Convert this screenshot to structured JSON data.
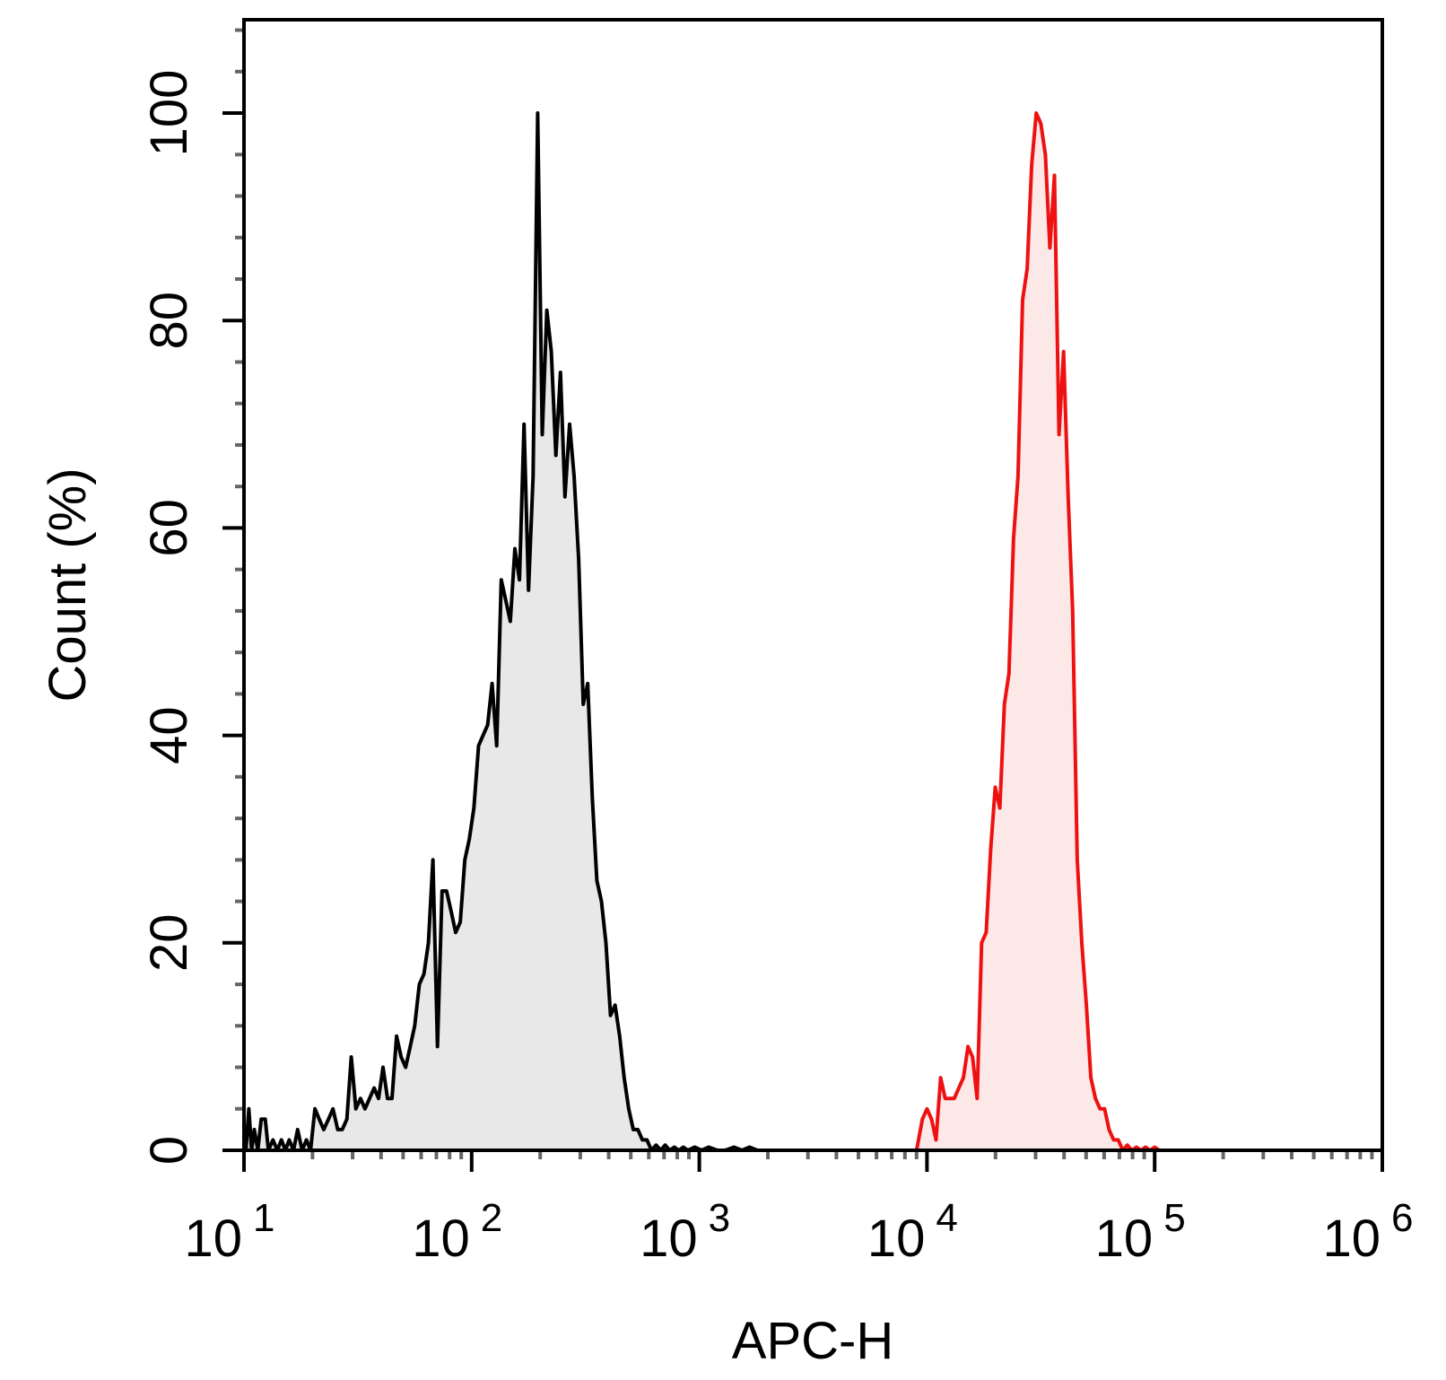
{
  "chart_data": {
    "type": "area",
    "xlabel": "APC-H",
    "ylabel": "Count  (%)",
    "x_scale": "log",
    "xlim": [
      10,
      1000000
    ],
    "ylim": [
      0,
      109
    ],
    "x_ticks": [
      {
        "base": "10",
        "exp": "1",
        "value": 10
      },
      {
        "base": "10",
        "exp": "2",
        "value": 100
      },
      {
        "base": "10",
        "exp": "3",
        "value": 1000
      },
      {
        "base": "10",
        "exp": "4",
        "value": 10000
      },
      {
        "base": "10",
        "exp": "5",
        "value": 100000
      },
      {
        "base": "10",
        "exp": "6",
        "value": 1000000
      }
    ],
    "y_ticks": [
      "0",
      "20",
      "40",
      "60",
      "80",
      "100"
    ],
    "grid": false,
    "legend": "none",
    "series": [
      {
        "color": "#000000",
        "fill": "#e8e8e8",
        "points": [
          [
            10.2,
            0
          ],
          [
            10.5,
            4
          ],
          [
            10.8,
            0
          ],
          [
            11.1,
            2
          ],
          [
            11.5,
            0
          ],
          [
            11.9,
            3
          ],
          [
            12.4,
            3
          ],
          [
            12.8,
            0
          ],
          [
            13.4,
            1
          ],
          [
            14.0,
            0
          ],
          [
            14.6,
            1
          ],
          [
            15.2,
            0
          ],
          [
            15.8,
            1
          ],
          [
            16.5,
            0
          ],
          [
            17.2,
            2
          ],
          [
            18.0,
            0
          ],
          [
            18.8,
            1
          ],
          [
            19.6,
            0
          ],
          [
            20.5,
            4
          ],
          [
            21.4,
            3
          ],
          [
            22.4,
            2
          ],
          [
            23.5,
            3
          ],
          [
            24.6,
            4
          ],
          [
            25.8,
            2
          ],
          [
            27.0,
            2
          ],
          [
            28.3,
            3
          ],
          [
            29.6,
            9
          ],
          [
            31.0,
            4
          ],
          [
            32.5,
            5
          ],
          [
            34.0,
            4
          ],
          [
            35.6,
            5
          ],
          [
            37.3,
            6
          ],
          [
            39.0,
            5
          ],
          [
            40.8,
            8
          ],
          [
            42.7,
            5
          ],
          [
            44.7,
            5
          ],
          [
            46.8,
            11
          ],
          [
            49.0,
            9
          ],
          [
            51.3,
            8
          ],
          [
            53.7,
            10
          ],
          [
            56.2,
            12
          ],
          [
            58.9,
            16
          ],
          [
            61.7,
            17
          ],
          [
            64.6,
            20
          ],
          [
            67.6,
            28
          ],
          [
            70.8,
            10
          ],
          [
            74.1,
            25
          ],
          [
            77.6,
            25
          ],
          [
            81.3,
            23
          ],
          [
            85.1,
            21
          ],
          [
            89.1,
            22
          ],
          [
            93.3,
            28
          ],
          [
            97.7,
            30
          ],
          [
            102.3,
            33
          ],
          [
            107.2,
            39
          ],
          [
            112.2,
            40
          ],
          [
            117.5,
            41
          ],
          [
            123.0,
            45
          ],
          [
            128.8,
            39
          ],
          [
            134.9,
            55
          ],
          [
            141.3,
            53
          ],
          [
            147.9,
            51
          ],
          [
            154.9,
            58
          ],
          [
            162.2,
            55
          ],
          [
            169.8,
            70
          ],
          [
            177.8,
            54
          ],
          [
            186.2,
            65
          ],
          [
            195.0,
            100
          ],
          [
            204.2,
            69
          ],
          [
            213.8,
            81
          ],
          [
            223.9,
            77
          ],
          [
            234.4,
            67
          ],
          [
            245.5,
            75
          ],
          [
            257.0,
            63
          ],
          [
            269.2,
            70
          ],
          [
            281.8,
            65
          ],
          [
            295.1,
            57
          ],
          [
            309.0,
            43
          ],
          [
            323.6,
            45
          ],
          [
            338.8,
            34
          ],
          [
            354.8,
            26
          ],
          [
            371.5,
            24
          ],
          [
            389.0,
            20
          ],
          [
            407.4,
            13
          ],
          [
            426.6,
            14
          ],
          [
            446.7,
            11
          ],
          [
            467.7,
            7
          ],
          [
            489.8,
            4
          ],
          [
            512.9,
            2
          ],
          [
            537.0,
            2
          ],
          [
            562.3,
            1
          ],
          [
            588.8,
            1
          ],
          [
            616.6,
            0
          ],
          [
            645.7,
            0.5
          ],
          [
            676.1,
            0
          ],
          [
            707.9,
            0.5
          ],
          [
            741.3,
            0
          ],
          [
            776.2,
            0.3
          ],
          [
            812.8,
            0
          ],
          [
            851.1,
            0.3
          ],
          [
            891.3,
            0
          ],
          [
            955.0,
            0.3
          ],
          [
            1023.0,
            0
          ],
          [
            1100.0,
            0.3
          ],
          [
            1200.0,
            0
          ],
          [
            1300.0,
            0
          ],
          [
            1420.0,
            0.3
          ],
          [
            1540.0,
            0
          ],
          [
            1660.0,
            0.3
          ],
          [
            1800.0,
            0
          ]
        ]
      },
      {
        "color": "#ee1111",
        "fill": "#fde8e8",
        "points": [
          [
            9000,
            0
          ],
          [
            9550,
            3
          ],
          [
            10000,
            4
          ],
          [
            10470,
            3
          ],
          [
            10960,
            1
          ],
          [
            11480,
            7
          ],
          [
            12020,
            5
          ],
          [
            12590,
            5
          ],
          [
            13180,
            5
          ],
          [
            13800,
            6
          ],
          [
            14450,
            7
          ],
          [
            15140,
            10
          ],
          [
            15850,
            9
          ],
          [
            16600,
            5
          ],
          [
            17380,
            20
          ],
          [
            18200,
            21
          ],
          [
            19050,
            29
          ],
          [
            19950,
            35
          ],
          [
            20890,
            33
          ],
          [
            21880,
            43
          ],
          [
            22910,
            46
          ],
          [
            23990,
            59
          ],
          [
            25120,
            65
          ],
          [
            26300,
            82
          ],
          [
            27540,
            85
          ],
          [
            28840,
            95
          ],
          [
            30200,
            100
          ],
          [
            31620,
            99
          ],
          [
            33110,
            96
          ],
          [
            34670,
            87
          ],
          [
            36310,
            94
          ],
          [
            38020,
            69
          ],
          [
            39810,
            77
          ],
          [
            41690,
            63
          ],
          [
            43650,
            52
          ],
          [
            45710,
            28
          ],
          [
            47860,
            20
          ],
          [
            50120,
            14
          ],
          [
            52480,
            7
          ],
          [
            54950,
            5
          ],
          [
            57540,
            4
          ],
          [
            60260,
            4
          ],
          [
            63100,
            2
          ],
          [
            66070,
            1
          ],
          [
            69180,
            1
          ],
          [
            72440,
            0
          ],
          [
            75860,
            0.5
          ],
          [
            79430,
            0
          ],
          [
            83180,
            0.3
          ],
          [
            87100,
            0
          ],
          [
            91200,
            0.3
          ],
          [
            95500,
            0
          ],
          [
            100000,
            0.3
          ],
          [
            104700,
            0
          ],
          [
            110000,
            0
          ]
        ]
      }
    ]
  }
}
